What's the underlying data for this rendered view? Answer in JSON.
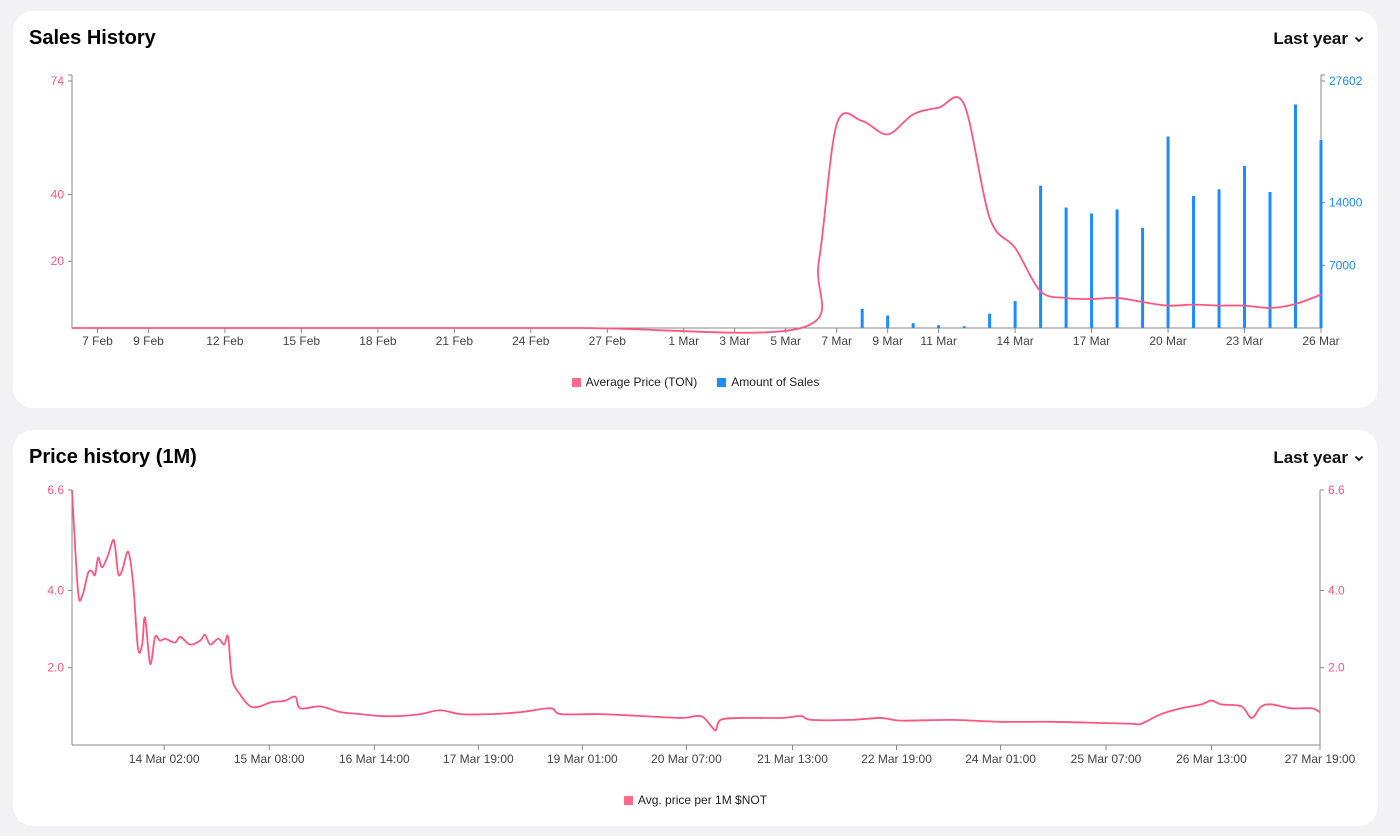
{
  "colors": {
    "price": "#ff5580",
    "sales": "#1a8cff",
    "axis": "#888888"
  },
  "sales_history": {
    "title": "Sales History",
    "range_label": "Last year"
  },
  "price_history": {
    "title": "Price history (1M)",
    "range_label": "Last year"
  },
  "chart_data": [
    {
      "type": "bar+line",
      "title": "Sales History",
      "x_unit": "days since 6 Feb",
      "xlim": [
        0,
        49
      ],
      "x_ticks": [
        {
          "x": 1,
          "label": "7 Feb"
        },
        {
          "x": 3,
          "label": "9 Feb"
        },
        {
          "x": 6,
          "label": "12 Feb"
        },
        {
          "x": 9,
          "label": "15 Feb"
        },
        {
          "x": 12,
          "label": "18 Feb"
        },
        {
          "x": 15,
          "label": "21 Feb"
        },
        {
          "x": 18,
          "label": "24 Feb"
        },
        {
          "x": 21,
          "label": "27 Feb"
        },
        {
          "x": 24,
          "label": "1 Mar"
        },
        {
          "x": 26,
          "label": "3 Mar"
        },
        {
          "x": 28,
          "label": "5 Mar"
        },
        {
          "x": 30,
          "label": "7 Mar"
        },
        {
          "x": 32,
          "label": "9 Mar"
        },
        {
          "x": 34,
          "label": "11 Mar"
        },
        {
          "x": 37,
          "label": "14 Mar"
        },
        {
          "x": 40,
          "label": "17 Mar"
        },
        {
          "x": 43,
          "label": "20 Mar"
        },
        {
          "x": 46,
          "label": "23 Mar"
        },
        {
          "x": 49,
          "label": "26 Mar"
        }
      ],
      "y_left": {
        "ylim": [
          0,
          74
        ],
        "ticks": [
          {
            "v": 20,
            "label": "20"
          },
          {
            "v": 40,
            "label": "40"
          },
          {
            "v": 74,
            "label": "74"
          }
        ]
      },
      "y_right": {
        "ylim": [
          0,
          27602
        ],
        "ticks": [
          {
            "v": 7000,
            "label": "7000"
          },
          {
            "v": 14000,
            "label": "14000"
          },
          {
            "v": 27602,
            "label": "27602"
          }
        ]
      },
      "legend": [
        "Average Price (TON)",
        "Amount of Sales"
      ],
      "legend_position": "bottom-center",
      "series": [
        {
          "name": "Average Price (TON)",
          "type": "line",
          "axis": "left",
          "points": [
            [
              0,
              0
            ],
            [
              10,
              0
            ],
            [
              20,
              0
            ],
            [
              28.6,
              0
            ],
            [
              29.3,
              20
            ],
            [
              30,
              61
            ],
            [
              31,
              62
            ],
            [
              32,
              58
            ],
            [
              33,
              64
            ],
            [
              34,
              66
            ],
            [
              35,
              67
            ],
            [
              36,
              33
            ],
            [
              37,
              24
            ],
            [
              38,
              11
            ],
            [
              39,
              9
            ],
            [
              40,
              8.7
            ],
            [
              41,
              9
            ],
            [
              42,
              7.8
            ],
            [
              43,
              6.7
            ],
            [
              44,
              7
            ],
            [
              45,
              6.7
            ],
            [
              46,
              6.7
            ],
            [
              47,
              6
            ],
            [
              48,
              7.2
            ],
            [
              49,
              10
            ]
          ]
        },
        {
          "name": "Amount of Sales",
          "type": "bar",
          "axis": "right",
          "points": [
            [
              31,
              2150
            ],
            [
              32,
              1400
            ],
            [
              33,
              540
            ],
            [
              34,
              320
            ],
            [
              35,
              200
            ],
            [
              36,
              1600
            ],
            [
              37,
              3000
            ],
            [
              38,
              15900
            ],
            [
              39,
              13460
            ],
            [
              40,
              12800
            ],
            [
              41,
              13250
            ],
            [
              42,
              11200
            ],
            [
              43,
              21400
            ],
            [
              44,
              14750
            ],
            [
              45,
              15500
            ],
            [
              46,
              18100
            ],
            [
              47,
              15200
            ],
            [
              48,
              24980
            ],
            [
              49,
              21000
            ]
          ]
        }
      ]
    },
    {
      "type": "line",
      "title": "Price history (1M)",
      "x_unit": "hours since start",
      "xlim": [
        0,
        357.5
      ],
      "x_ticks": [
        {
          "x": 26.4,
          "label": "14 Mar 02:00"
        },
        {
          "x": 56.5,
          "label": "15 Mar 08:00"
        },
        {
          "x": 86.6,
          "label": "16 Mar 14:00"
        },
        {
          "x": 116.4,
          "label": "17 Mar 19:00"
        },
        {
          "x": 146.2,
          "label": "19 Mar 01:00"
        },
        {
          "x": 176,
          "label": "20 Mar 07:00"
        },
        {
          "x": 206.4,
          "label": "21 Mar 13:00"
        },
        {
          "x": 236.2,
          "label": "22 Mar 19:00"
        },
        {
          "x": 266,
          "label": "24 Mar 01:00"
        },
        {
          "x": 296.2,
          "label": "25 Mar 07:00"
        },
        {
          "x": 326.4,
          "label": "26 Mar 13:00"
        },
        {
          "x": 357.5,
          "label": "27 Mar 19:00"
        }
      ],
      "y": {
        "ylim": [
          0,
          6.6
        ],
        "ticks": [
          {
            "v": 2.0,
            "label": "2.0"
          },
          {
            "v": 4.0,
            "label": "4.0"
          },
          {
            "v": 6.6,
            "label": "6.6"
          }
        ]
      },
      "legend": [
        "Avg. price per 1M $NOT"
      ],
      "legend_position": "bottom-center",
      "series": [
        {
          "name": "Avg. price per 1M $NOT",
          "points": [
            [
              0,
              6.6
            ],
            [
              1.7,
              4.0
            ],
            [
              2.9,
              3.85
            ],
            [
              4.6,
              4.45
            ],
            [
              5.7,
              4.5
            ],
            [
              6.6,
              4.4
            ],
            [
              7.5,
              4.85
            ],
            [
              8.6,
              4.6
            ],
            [
              10.3,
              4.9
            ],
            [
              12.0,
              5.3
            ],
            [
              13.2,
              4.45
            ],
            [
              14.3,
              4.5
            ],
            [
              16.1,
              5.0
            ],
            [
              17.5,
              4.2
            ],
            [
              18.9,
              2.5
            ],
            [
              20.1,
              2.6
            ],
            [
              20.9,
              3.3
            ],
            [
              22.4,
              2.1
            ],
            [
              23.8,
              2.8
            ],
            [
              25.2,
              2.7
            ],
            [
              26.7,
              2.75
            ],
            [
              29.5,
              2.65
            ],
            [
              31.0,
              2.8
            ],
            [
              33.8,
              2.6
            ],
            [
              36.7,
              2.7
            ],
            [
              38.1,
              2.85
            ],
            [
              39.6,
              2.6
            ],
            [
              41.9,
              2.75
            ],
            [
              43.6,
              2.6
            ],
            [
              44.7,
              2.8
            ],
            [
              45.9,
              1.7
            ],
            [
              48.2,
              1.3
            ],
            [
              51.1,
              1.0
            ],
            [
              53.9,
              1.0
            ],
            [
              56.8,
              1.1
            ],
            [
              61.1,
              1.15
            ],
            [
              64.0,
              1.25
            ],
            [
              65.4,
              0.95
            ],
            [
              71.1,
              1.0
            ],
            [
              76.9,
              0.85
            ],
            [
              82.6,
              0.8
            ],
            [
              88.3,
              0.75
            ],
            [
              94.1,
              0.75
            ],
            [
              99.8,
              0.8
            ],
            [
              105.5,
              0.9
            ],
            [
              111.3,
              0.8
            ],
            [
              119.9,
              0.8
            ],
            [
              128.5,
              0.85
            ],
            [
              137.1,
              0.95
            ],
            [
              140.0,
              0.8
            ],
            [
              151.4,
              0.8
            ],
            [
              162.9,
              0.75
            ],
            [
              174.4,
              0.7
            ],
            [
              180.1,
              0.75
            ],
            [
              183.0,
              0.5
            ],
            [
              184.4,
              0.38
            ],
            [
              185.8,
              0.65
            ],
            [
              191.6,
              0.7
            ],
            [
              203.1,
              0.7
            ],
            [
              208.8,
              0.75
            ],
            [
              211.7,
              0.65
            ],
            [
              223.1,
              0.65
            ],
            [
              231.7,
              0.7
            ],
            [
              237.5,
              0.63
            ],
            [
              251.8,
              0.65
            ],
            [
              266.2,
              0.6
            ],
            [
              280.5,
              0.6
            ],
            [
              294.8,
              0.57
            ],
            [
              303.4,
              0.55
            ],
            [
              306.3,
              0.55
            ],
            [
              312.0,
              0.8
            ],
            [
              317.8,
              0.95
            ],
            [
              323.5,
              1.05
            ],
            [
              326.4,
              1.15
            ],
            [
              329.2,
              1.05
            ],
            [
              335.0,
              1.0
            ],
            [
              337.9,
              0.7
            ],
            [
              340.7,
              1.0
            ],
            [
              343.6,
              1.05
            ],
            [
              349.3,
              0.95
            ],
            [
              355.1,
              0.95
            ],
            [
              357.5,
              0.85
            ]
          ]
        }
      ]
    }
  ]
}
